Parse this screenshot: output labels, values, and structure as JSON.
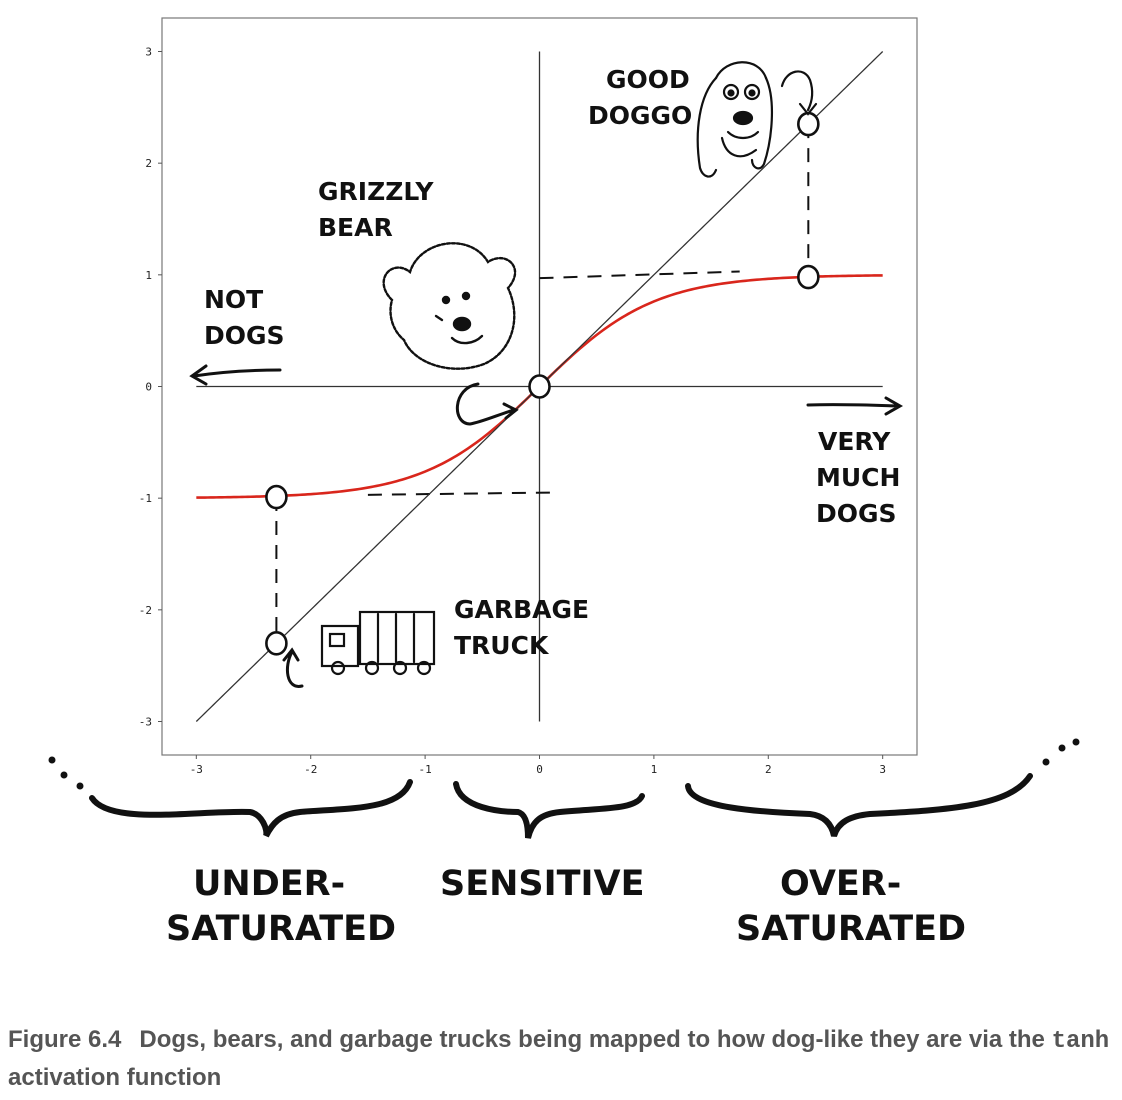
{
  "chart_data": {
    "type": "line",
    "title": "",
    "xlabel": "",
    "ylabel": "",
    "xlim": [
      -3.3,
      3.3
    ],
    "ylim": [
      -3.3,
      3.3
    ],
    "x_ticks": [
      -3,
      -2,
      -1,
      0,
      1,
      2,
      3
    ],
    "y_ticks": [
      -3,
      -2,
      -1,
      0,
      1,
      2,
      3
    ],
    "x_tick_labels": [
      "-3",
      "-2",
      "-1",
      "0",
      "1",
      "2",
      "3"
    ],
    "y_tick_labels": [
      "-3",
      "-2",
      "-1",
      "0",
      "1",
      "2",
      "3"
    ],
    "grid": false,
    "series": [
      {
        "function": "tanh",
        "x_range": [
          -3,
          3
        ],
        "color": "#d9261c"
      },
      {
        "function": "identity",
        "x_range": [
          -3,
          3
        ],
        "color": "#333333"
      }
    ],
    "highlighted_points": [
      {
        "x": 2.35,
        "y": 2.35
      },
      {
        "x": 2.35,
        "y": 0.98
      },
      {
        "x": 0.0,
        "y": 0.0
      },
      {
        "x": -2.3,
        "y": -0.99
      },
      {
        "x": -2.3,
        "y": -2.3
      }
    ],
    "annotations": {
      "good_doggo": [
        "GOOD",
        "DOGGO"
      ],
      "grizzly_bear": [
        "GRIZZLY",
        "BEAR"
      ],
      "not_dogs": [
        "NOT",
        "DOGS"
      ],
      "very_much_dogs": [
        "VERY",
        "MUCH",
        "DOGS"
      ],
      "garbage_truck": [
        "GARBAGE",
        "TRUCK"
      ]
    },
    "regions": {
      "under_saturated": [
        "UNDER-",
        "SATURATED"
      ],
      "sensitive": [
        "SENSITIVE"
      ],
      "over_saturated": [
        "OVER-",
        "SATURATED"
      ]
    }
  },
  "caption": {
    "number": "Figure 6.4",
    "text_before": "Dogs, bears, and garbage trucks being mapped to how dog-like they are via the ",
    "code": "tanh",
    "text_after": " activation function"
  },
  "colors": {
    "tanh": "#d9261c",
    "identity": "#333333",
    "ink": "#111111"
  }
}
